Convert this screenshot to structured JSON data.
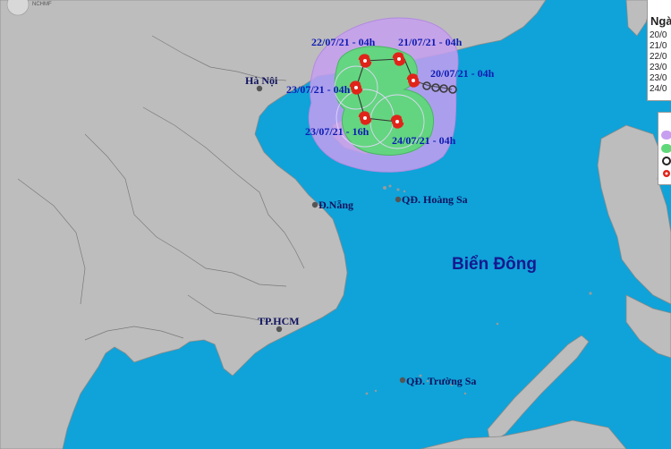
{
  "map": {
    "sea_label": "Biển Đông",
    "cities": [
      {
        "id": "hanoi",
        "name": "Hà Nội"
      },
      {
        "id": "danang",
        "name": "Đ.Nẵng"
      },
      {
        "id": "hcm",
        "name": "TP.HCM"
      },
      {
        "id": "hoangsa",
        "name": "QĐ. Hoàng Sa"
      },
      {
        "id": "truongsa",
        "name": "QĐ. Trường Sa"
      }
    ],
    "track_times": [
      "22/07/21 - 04h",
      "21/07/21 - 04h",
      "20/07/21 - 04h",
      "23/07/21 - 04h",
      "23/07/21 - 16h",
      "24/07/21 - 04h"
    ],
    "colors": {
      "sea": "#0fa3d9",
      "land": "#bdbdbd",
      "risk_zone": "#c79ff0",
      "strong_wind_zone": "#5fd87a",
      "storm_symbol": "#e0241a"
    }
  },
  "legend": {
    "heading": "Ngà",
    "rows": [
      "20/0",
      "21/0",
      "22/0",
      "23/0",
      "23/0",
      "24/0"
    ],
    "icons": [
      "risk-zone-swatch",
      "strong-wind-swatch",
      "tropical-depression-icon",
      "storm-icon"
    ]
  },
  "logo": {
    "text": "NCHMF"
  }
}
